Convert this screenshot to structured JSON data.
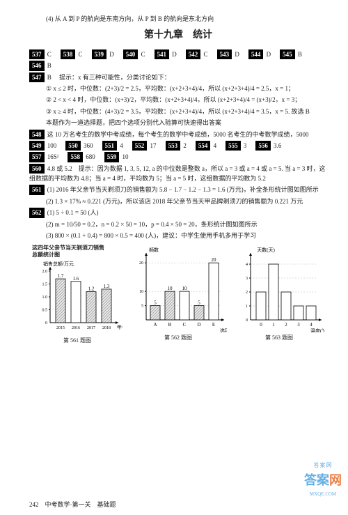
{
  "top_line": "(4) 从 A 到 P 的航向是东南方向，从 P 到 B 的航向是东北方向",
  "chapter": "第十九章　统计",
  "row1": [
    {
      "n": "537",
      "a": "C"
    },
    {
      "n": "538",
      "a": "C"
    },
    {
      "n": "539",
      "a": "D"
    },
    {
      "n": "540",
      "a": "C"
    },
    {
      "n": "541",
      "a": "D"
    },
    {
      "n": "542",
      "a": "C"
    },
    {
      "n": "543",
      "a": "D"
    },
    {
      "n": "544",
      "a": "D"
    },
    {
      "n": "545",
      "a": "B"
    }
  ],
  "row2": [
    {
      "n": "546",
      "a": "B"
    }
  ],
  "q547": {
    "n": "547",
    "ans": "B",
    "hint": "提示：x 有三种可能性，分类讨论如下：",
    "c1": "① x ≤ 2 时，中位数：(2+3)/2 = 2.5，平均数：(x+2+3+4)/4，所以 (x+2+3+4)/4 = 2.5，x = 1；",
    "c2": "② 2 < x < 4 时，中位数：(x+3)/2，平均数：(x+2+3+4)/4，所以 (x+2+3+4)/4 = (x+3)/2，x = 3；",
    "c3": "③ x ≥ 4 时，中位数：(4+3)/2 = 3.5，平均数：(x+2+3+4)/4，所以 (x+2+3+4)/4 = 3.5，x = 5. 故选 B",
    "note": "本题作为一道选择题，把四个选项分别代入验算可快速得出答案"
  },
  "q548": {
    "n": "548",
    "txt": "这 10 万名考生的数学中考成绩，每个考生的数学中考成绩，5000 名考生的中考数学成绩，5000"
  },
  "row3": [
    {
      "n": "549",
      "a": "100"
    },
    {
      "n": "550",
      "a": "360"
    },
    {
      "n": "551",
      "a": "4"
    },
    {
      "n": "552",
      "a": "17"
    },
    {
      "n": "553",
      "a": "2"
    },
    {
      "n": "554",
      "a": "4"
    },
    {
      "n": "555",
      "a": "3"
    },
    {
      "n": "556",
      "a": "3.6"
    }
  ],
  "row4": [
    {
      "n": "557",
      "a": "16S²"
    },
    {
      "n": "558",
      "a": "680"
    },
    {
      "n": "559",
      "a": "10"
    }
  ],
  "q560": {
    "n": "560",
    "txt": "4.8 或 5.2　提示：因为数据 1, 3, 5, 12, a 的中位数是整数 a，所以 a = 3 或 a = 4 或 a = 5. 当 a = 3 时，这组数据的平均数为 4.8；当 a = 4 时，平均数为 5；当 a = 5 时，这组数据的平均数为 5.2"
  },
  "q561": {
    "n": "561",
    "p1": "(1) 2016 年父亲节当天剃须刀的销售额为 5.8 − 1.7 − 1.2 − 1.3 = 1.6 (万元)，补全条形统计图如图所示",
    "p2": "(2) 1.3 × 17% ≈ 0.221 (万元)，所以该店 2018 年父亲节当天甲品牌剃须刀的销售额为 0.221 万元"
  },
  "q562": {
    "n": "562",
    "p1": "(1) 5 ÷ 0.1 = 50 (人)",
    "p2": "(2) m = 10/50 = 0.2，n = 0.2 × 50 = 10，p = 0.4 × 50 = 20，条形统计图如图所示",
    "p3": "(3) 800 × (0.1 + 0.4) = 800 × 0.5 = 400 (人)，建议：中学生使用手机多用于学习"
  },
  "chart1": {
    "title_l1": "这四年父亲节当天剃须刀销售",
    "title_l2": "总额统计图",
    "ylabel": "销售总额/万元",
    "xlabel": "年份",
    "ytick_max": 2.0,
    "ytick_step": 0.5,
    "ylim": [
      0,
      2.0
    ],
    "bars": [
      {
        "x": "2015",
        "v": 1.7,
        "label": "1.7",
        "hatched": true
      },
      {
        "x": "2016",
        "v": 1.6,
        "label": "1.6",
        "hatched": false
      },
      {
        "x": "2017",
        "v": 1.2,
        "label": "1.2",
        "hatched": true
      },
      {
        "x": "2018",
        "v": 1.3,
        "label": "1.3",
        "hatched": true
      }
    ],
    "caption": "第 561 题图"
  },
  "chart2": {
    "ylabel": "频数",
    "xlabel": "选项",
    "ticks": [
      5,
      10,
      20
    ],
    "ylim": [
      0,
      22
    ],
    "bars": [
      {
        "x": "A",
        "v": 5,
        "label": "5",
        "hatched": true
      },
      {
        "x": "B",
        "v": 10,
        "label": "10",
        "hatched": true
      },
      {
        "x": "C",
        "v": 10,
        "label": "10",
        "hatched": false
      },
      {
        "x": "D",
        "v": 5,
        "label": "5",
        "hatched": true
      },
      {
        "x": "E",
        "v": 20,
        "label": "20",
        "hatched": false
      }
    ],
    "caption": "第 562 题图"
  },
  "chart3": {
    "ylabel": "天数(天)",
    "xlabel": "温度(℃)",
    "ticks": [
      1,
      2,
      3,
      4
    ],
    "xlim": [
      0,
      5
    ],
    "ylim": [
      0,
      4.5
    ],
    "bars": [
      {
        "x": 0,
        "v": 2
      },
      {
        "x": 1,
        "v": 4
      },
      {
        "x": 2,
        "v": 2
      },
      {
        "x": 3,
        "v": 1
      },
      {
        "x": 4,
        "v": 1
      }
    ],
    "caption": "第 563 题图"
  },
  "style": {
    "black": "#000000",
    "hatched_bg": "#cfcfcf",
    "open_fill": "#ffffff",
    "stroke": "#000000",
    "bar_stroke_w": 0.8
  },
  "footer": "242　中考数学·第一关　基础题",
  "watermark": {
    "top": "答案网",
    "brand_b": "答案",
    "brand_r": "网",
    "domain": "MXQE.COM"
  }
}
